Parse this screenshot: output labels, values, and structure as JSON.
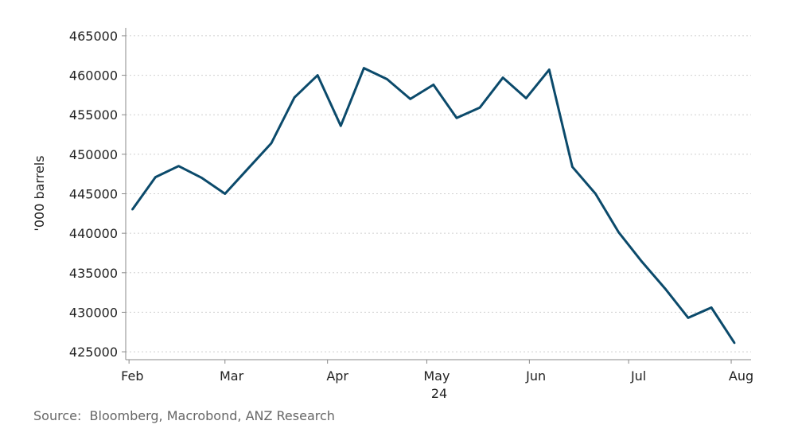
{
  "chart_data": {
    "type": "line",
    "title": "",
    "xlabel": "",
    "ylabel": "'000 barrels",
    "year_label": "24",
    "ylim": [
      424000,
      466000
    ],
    "yticks": [
      425000,
      430000,
      435000,
      440000,
      445000,
      450000,
      455000,
      460000,
      465000
    ],
    "xlim": [
      "2024-01-31",
      "2024-08-07"
    ],
    "month_labels": [
      {
        "label": "Feb",
        "date": "2024-02-02"
      },
      {
        "label": "Mar",
        "date": "2024-03-03"
      },
      {
        "label": "Apr",
        "date": "2024-04-04"
      },
      {
        "label": "May",
        "date": "2024-05-04"
      },
      {
        "label": "Jun",
        "date": "2024-06-03"
      },
      {
        "label": "Jul",
        "date": "2024-07-04"
      },
      {
        "label": "Aug",
        "date": "2024-08-04"
      }
    ],
    "grid": true,
    "color": "#0b4a6b",
    "series": [
      {
        "x": [
          "2024-02-02",
          "2024-02-09",
          "2024-02-16",
          "2024-02-23",
          "2024-03-01",
          "2024-03-08",
          "2024-03-15",
          "2024-03-22",
          "2024-03-29",
          "2024-04-05",
          "2024-04-12",
          "2024-04-19",
          "2024-04-26",
          "2024-05-03",
          "2024-05-10",
          "2024-05-17",
          "2024-05-24",
          "2024-05-31",
          "2024-06-07",
          "2024-06-14",
          "2024-06-21",
          "2024-06-28",
          "2024-07-05",
          "2024-07-12",
          "2024-07-19",
          "2024-07-26",
          "2024-08-02"
        ],
        "values": [
          443000,
          447100,
          448500,
          447000,
          445000,
          448200,
          451400,
          457200,
          460000,
          453600,
          460900,
          459500,
          457000,
          458800,
          454600,
          455900,
          459700,
          457100,
          460700,
          448400,
          445000,
          440100,
          436400,
          433000,
          429300,
          430600,
          426100
        ]
      }
    ]
  },
  "source": {
    "label": "Source:",
    "text": "Bloomberg, Macrobond, ANZ Research"
  }
}
